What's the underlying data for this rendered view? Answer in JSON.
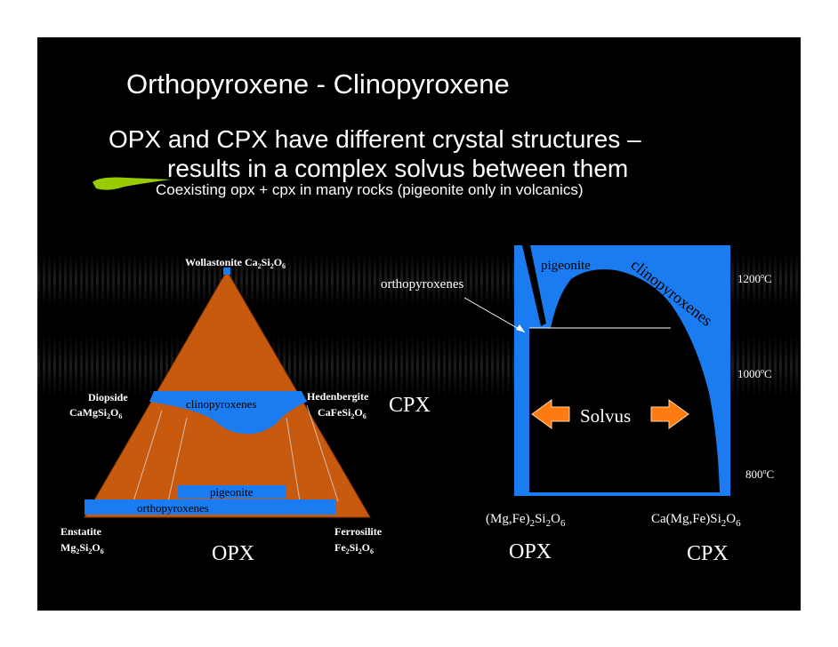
{
  "title": "Orthopyroxene - Clinopyroxene",
  "bullet1_line1": "OPX and CPX have different crystal structures –",
  "bullet1_line2": "results in a complex solvus between them",
  "bullet2": "Coexisting opx + cpx in many rocks (pigeonite only in volcanics)",
  "colors": {
    "background": "#000000",
    "triangle": "#c85a10",
    "blue_field": "#1a7cf0",
    "text": "#ffffff",
    "accent_green": "#99cc00",
    "arrow": "#ff7a10"
  },
  "ternary": {
    "wollastonite": "Wollastonite Ca",
    "wollastonite_sub1": "2",
    "wollastonite_mid": "Si",
    "wollastonite_sub2": "2",
    "wollastonite_o": "O",
    "wollastonite_sub3": "6",
    "diopside": "Diopside",
    "diopside_formula": "CaMgSi",
    "diopside_sub1": "2",
    "diopside_o": "O",
    "diopside_sub2": "6",
    "hedenbergite": "Hedenbergite",
    "hedenbergite_formula": "CaFeSi",
    "hedenbergite_sub1": "2",
    "hedenbergite_o": "O",
    "hedenbergite_sub2": "6",
    "enstatite": "Enstatite",
    "enstatite_formula": "Mg",
    "enstatite_sub1": "2",
    "enstatite_mid": "Si",
    "enstatite_sub2": "2",
    "enstatite_o": "O",
    "enstatite_sub3": "6",
    "ferrosilite": "Ferrosilite",
    "ferrosilite_formula": "Fe",
    "ferrosilite_sub1": "2",
    "ferrosilite_mid": "Si",
    "ferrosilite_sub2": "2",
    "ferrosilite_o": "O",
    "ferrosilite_sub3": "6",
    "clinopyroxenes": "clinopyroxenes",
    "pigeonite": "pigeonite",
    "orthopyroxenes": "orthopyroxenes",
    "cpx": "CPX",
    "opx": "OPX"
  },
  "phase": {
    "pigeonite": "pigeonite",
    "clinopyroxenes": "clinopyroxenes",
    "orthopyroxenes": "orthopyroxenes",
    "solvus": "Solvus",
    "t1200": "1200",
    "t1000": "1000",
    "t800": "800",
    "deg": "o",
    "c": "C",
    "left_formula_a": "(Mg,Fe)",
    "left_sub1": "2",
    "left_formula_b": "Si",
    "left_sub2": "2",
    "left_formula_c": "O",
    "left_sub3": "6",
    "right_formula_a": "Ca(Mg,Fe)Si",
    "right_sub1": "2",
    "right_formula_b": "O",
    "right_sub2": "6",
    "opx": "OPX",
    "cpx": "CPX"
  }
}
